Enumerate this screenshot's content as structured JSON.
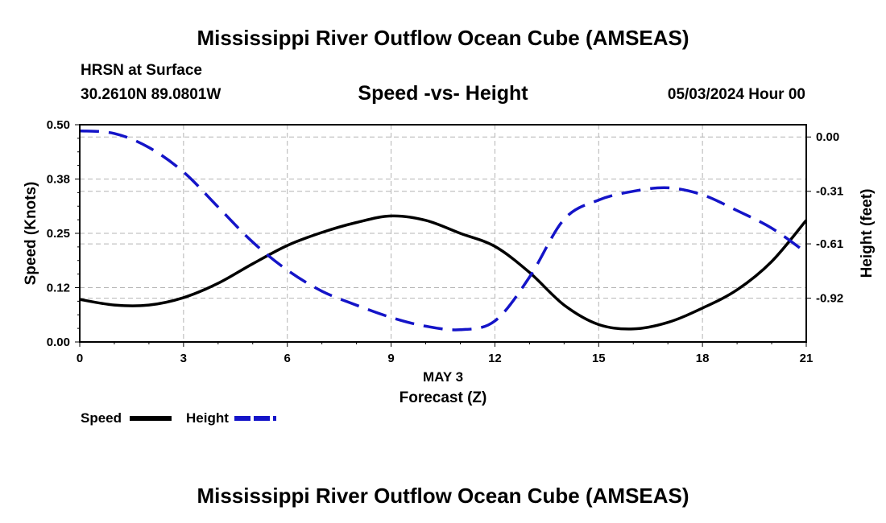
{
  "header": {
    "title": "Mississippi River Outflow Ocean Cube (AMSEAS)",
    "subtitle_line1": "HRSN at Surface",
    "coordinates": "30.2610N  89.0801W",
    "chart_subtitle": "Speed -vs- Height",
    "datetime": "05/03/2024 Hour 00"
  },
  "legend": {
    "speed_label": "Speed",
    "height_label": "Height"
  },
  "footer": {
    "title": "Mississippi River Outflow Ocean Cube (AMSEAS)"
  },
  "colors": {
    "speed": "#000000",
    "height": "#1414c8",
    "grid": "#b4b4b4"
  },
  "chart_data": {
    "type": "line",
    "title": "Speed -vs- Height",
    "xlabel_date": "MAY 3",
    "xlabel": "Forecast (Z)",
    "ylabel": "Speed (Knots)",
    "y2label": "Height (feet)",
    "xlim": [
      0,
      21
    ],
    "ylim": [
      0,
      0.5
    ],
    "y2lim": [
      0.07,
      -1.17
    ],
    "x_ticks": [
      0,
      3,
      6,
      9,
      12,
      15,
      18,
      21
    ],
    "x_tick_labels": [
      "0",
      "3",
      "6",
      "9",
      "12",
      "15",
      "18",
      "21"
    ],
    "y_ticks": [
      0.0,
      0.125,
      0.25,
      0.375,
      0.5
    ],
    "y_tick_labels": [
      "0.00",
      "0.12",
      "0.25",
      "0.38",
      "0.50"
    ],
    "y2_ticks": [
      0.0,
      -0.31,
      -0.61,
      -0.92
    ],
    "y2_tick_labels": [
      "0.00",
      "-0.31",
      "-0.61",
      "-0.92"
    ],
    "series": [
      {
        "name": "Speed",
        "axis": "left",
        "style": "solid",
        "x": [
          0,
          1,
          2,
          3,
          4,
          5,
          6,
          7,
          8,
          9,
          10,
          11,
          12,
          13,
          14,
          15,
          16,
          17,
          18,
          19,
          20,
          21
        ],
        "values": [
          0.098,
          0.085,
          0.085,
          0.102,
          0.135,
          0.18,
          0.222,
          0.252,
          0.275,
          0.29,
          0.28,
          0.25,
          0.22,
          0.16,
          0.085,
          0.04,
          0.03,
          0.045,
          0.078,
          0.12,
          0.185,
          0.28
        ]
      },
      {
        "name": "Height",
        "axis": "right",
        "style": "dashed",
        "x": [
          0,
          1,
          2,
          3,
          4,
          5,
          6,
          7,
          8,
          9,
          10,
          11,
          12,
          13,
          14,
          15,
          16,
          17,
          18,
          19,
          20,
          21
        ],
        "values": [
          0.035,
          0.02,
          -0.06,
          -0.2,
          -0.4,
          -0.6,
          -0.76,
          -0.88,
          -0.96,
          -1.03,
          -1.08,
          -1.1,
          -1.05,
          -0.8,
          -0.47,
          -0.36,
          -0.31,
          -0.29,
          -0.33,
          -0.42,
          -0.52,
          -0.66
        ]
      }
    ]
  }
}
